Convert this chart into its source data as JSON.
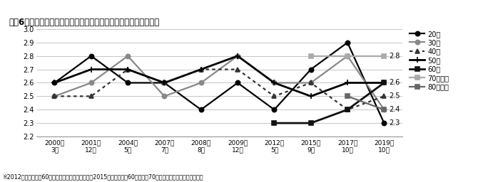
{
  "title": "図表6　信頼感：マスコミ・報道機関の平均評点の推移【年代別】",
  "footnote": "※2012年調査まで　60歳以上」としていた区分を、2015年調査から　60代」と、70歳以上」に分けて集計している",
  "x_labels": [
    "2000年\n3月",
    "2001年\n12月",
    "2004年\n5月",
    "2007年\n7月",
    "2008年\n8月",
    "2009年\n12月",
    "2012年\n5月",
    "2015年\n9月",
    "2017年\n10月",
    "2019年\n10月"
  ],
  "series": [
    {
      "label": "20代",
      "color": "#000000",
      "lw": 1.6,
      "ls": "solid",
      "marker": "o",
      "ms": 4.5,
      "values": [
        2.6,
        2.8,
        2.6,
        2.6,
        2.4,
        2.6,
        2.4,
        2.7,
        2.9,
        2.3
      ]
    },
    {
      "label": "30代",
      "color": "#888888",
      "lw": 1.6,
      "ls": "solid",
      "marker": "o",
      "ms": 4.5,
      "values": [
        2.5,
        2.6,
        2.8,
        2.5,
        2.6,
        2.8,
        2.6,
        2.6,
        2.8,
        2.4
      ]
    },
    {
      "label": "40代",
      "color": "#333333",
      "lw": 1.6,
      "ls": "dotted",
      "marker": "^",
      "ms": 4.5,
      "values": [
        2.5,
        2.5,
        2.7,
        2.6,
        2.7,
        2.7,
        2.5,
        2.6,
        2.4,
        2.5
      ]
    },
    {
      "label": "50代",
      "color": "#000000",
      "lw": 2.0,
      "ls": "solid",
      "marker": "+",
      "ms": 6,
      "values": [
        2.6,
        2.7,
        2.7,
        2.6,
        2.7,
        2.8,
        2.6,
        2.5,
        2.6,
        2.6
      ]
    },
    {
      "label": "60代",
      "color": "#111111",
      "lw": 2.0,
      "ls": "solid",
      "marker": "s",
      "ms": 4.5,
      "values": [
        null,
        null,
        null,
        null,
        null,
        null,
        2.3,
        2.3,
        2.4,
        2.6
      ]
    },
    {
      "label": "70歳以上",
      "color": "#aaaaaa",
      "lw": 1.6,
      "ls": "solid",
      "marker": "s",
      "ms": 4.5,
      "values": [
        null,
        null,
        null,
        null,
        null,
        null,
        null,
        2.8,
        2.8,
        2.8
      ]
    },
    {
      "label": "80歳以上",
      "color": "#666666",
      "lw": 1.6,
      "ls": "solid",
      "marker": "s",
      "ms": 4.5,
      "values": [
        null,
        null,
        null,
        null,
        null,
        null,
        null,
        null,
        2.5,
        2.4
      ]
    }
  ],
  "right_annotations": [
    [
      2.8,
      "2.8"
    ],
    [
      2.6,
      "2.6"
    ],
    [
      2.5,
      "2.5"
    ],
    [
      2.4,
      "2.4"
    ],
    [
      2.3,
      "2.3"
    ]
  ],
  "ylim": [
    2.2,
    3.0
  ],
  "yticks": [
    2.2,
    2.3,
    2.4,
    2.5,
    2.6,
    2.7,
    2.8,
    2.9,
    3.0
  ],
  "background_color": "#ffffff",
  "grid_color": "#bbbbbb"
}
